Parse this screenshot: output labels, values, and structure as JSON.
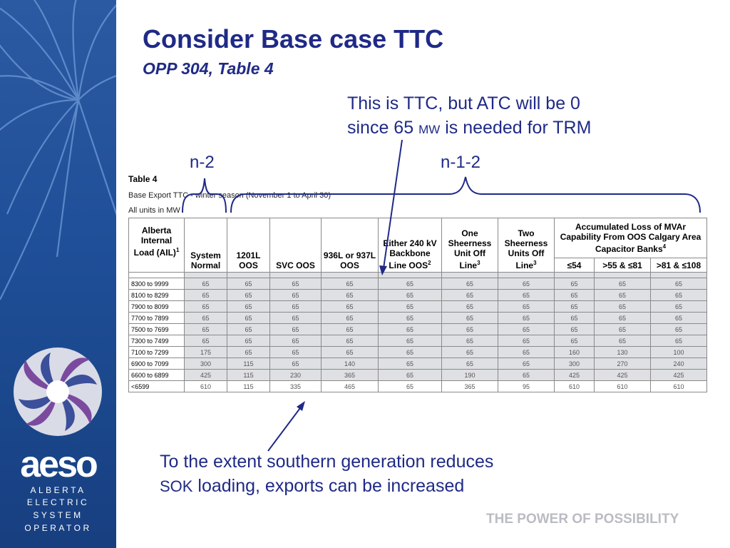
{
  "slide": {
    "title": "Consider Base case TTC",
    "subtitle": "OPP 304, Table 4",
    "callout_top": {
      "line1": "This is TTC, but ATC will be 0",
      "line2_a": "since 65 ",
      "line2_unit": "MW",
      "line2_b": " is needed for TRM"
    },
    "label_n2": "n-2",
    "label_n12": "n-1-2",
    "callout_bottom": {
      "line1": "To the extent southern generation reduces",
      "line2_a": "SOK",
      "line2_b": " loading, exports can be increased"
    },
    "tagline": "THE POWER OF POSSIBILITY"
  },
  "logo": {
    "word": "aeso",
    "lines": [
      "ALBERTA",
      "ELECTRIC",
      "SYSTEM",
      "OPERATOR"
    ]
  },
  "table": {
    "caption": "Table 4",
    "description": "Base Export TTC - winter season (November 1 to April 30)",
    "units": "All units in MW",
    "headers": {
      "ail": "Alberta Internal Load (AIL)",
      "ail_sup": "1",
      "system_normal": "System Normal",
      "oos_1201l": "1201L OOS",
      "svc_oos": "SVC OOS",
      "oos_936": "936L or 937L OOS",
      "backbone": "Either 240 kV Backbone Line OOS",
      "backbone_sup": "2",
      "one_sheerness": "One Sheerness Unit Off Line",
      "one_sheerness_sup": "3",
      "two_sheerness": "Two Sheerness Units Off Line",
      "two_sheerness_sup": "3",
      "mvar": "Accumulated Loss of MVAr Capability From OOS Calgary Area Capacitor Banks",
      "mvar_sup": "4",
      "mvar_sub": [
        "≤54",
        ">55 & ≤81",
        ">81 & ≤108"
      ]
    },
    "rows": [
      {
        "label": "8300 to 9999",
        "values": [
          "65",
          "65",
          "65",
          "65",
          "65",
          "65",
          "65",
          "65",
          "65",
          "65"
        ]
      },
      {
        "label": "8100 to 8299",
        "values": [
          "65",
          "65",
          "65",
          "65",
          "65",
          "65",
          "65",
          "65",
          "65",
          "65"
        ]
      },
      {
        "label": "7900 to 8099",
        "values": [
          "65",
          "65",
          "65",
          "65",
          "65",
          "65",
          "65",
          "65",
          "65",
          "65"
        ]
      },
      {
        "label": "7700 to 7899",
        "values": [
          "65",
          "65",
          "65",
          "65",
          "65",
          "65",
          "65",
          "65",
          "65",
          "65"
        ]
      },
      {
        "label": "7500 to 7699",
        "values": [
          "65",
          "65",
          "65",
          "65",
          "65",
          "65",
          "65",
          "65",
          "65",
          "65"
        ]
      },
      {
        "label": "7300 to 7499",
        "values": [
          "65",
          "65",
          "65",
          "65",
          "65",
          "65",
          "65",
          "65",
          "65",
          "65"
        ]
      },
      {
        "label": "7100 to 7299",
        "values": [
          "175",
          "65",
          "65",
          "65",
          "65",
          "65",
          "65",
          "160",
          "130",
          "100"
        ]
      },
      {
        "label": "6900 to 7099",
        "values": [
          "300",
          "115",
          "65",
          "140",
          "65",
          "65",
          "65",
          "300",
          "270",
          "240"
        ]
      },
      {
        "label": "6600 to 6899",
        "values": [
          "425",
          "115",
          "230",
          "365",
          "65",
          "190",
          "65",
          "425",
          "425",
          "425"
        ]
      },
      {
        "label": "<6599",
        "values": [
          "610",
          "115",
          "335",
          "465",
          "65",
          "365",
          "95",
          "610",
          "610",
          "610"
        ]
      }
    ]
  },
  "colors": {
    "title": "#1f2a86",
    "sidebar": "#1f4f98",
    "cell_shade": "#dfe0e3",
    "tagline": "#b9bcc2"
  }
}
